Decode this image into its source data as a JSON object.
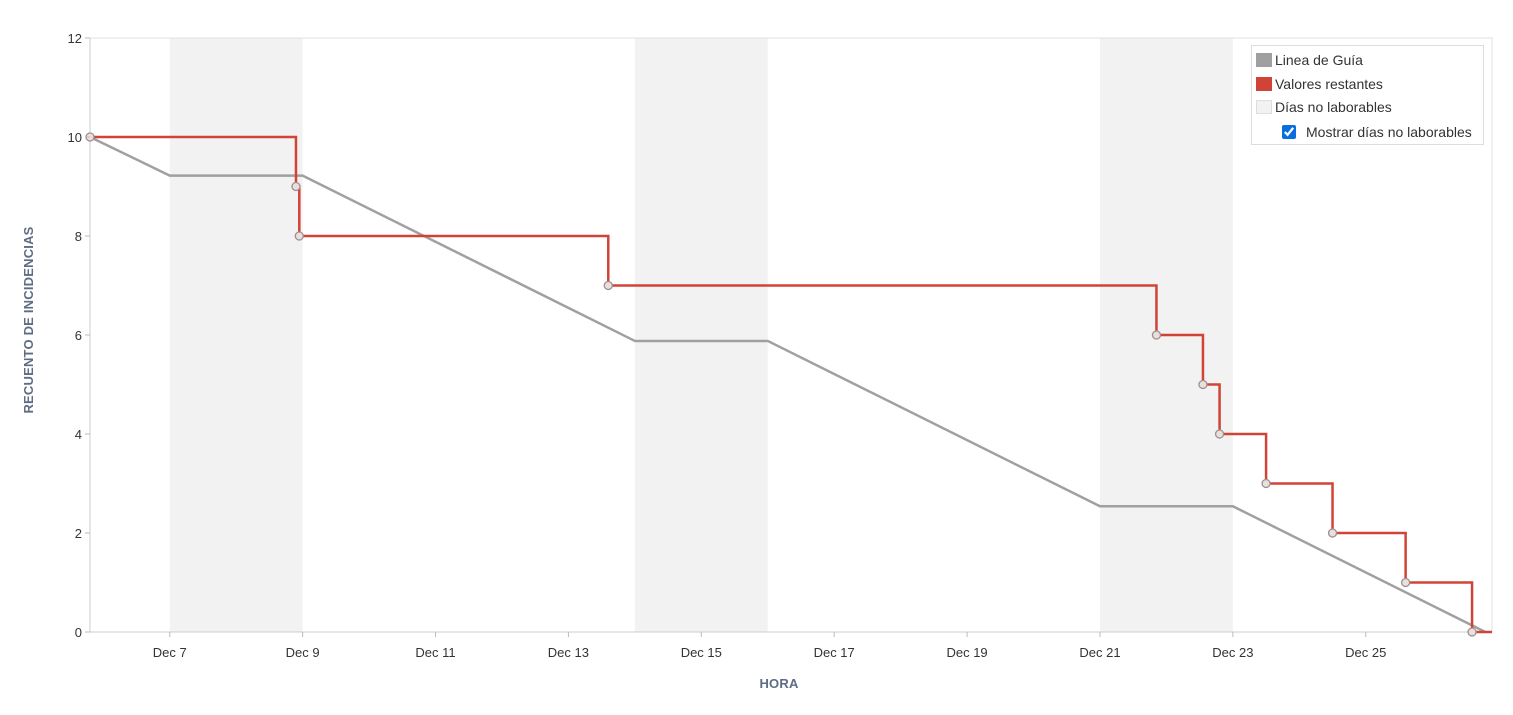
{
  "chart_data": {
    "type": "line",
    "xlabel": "HORA",
    "ylabel": "RECUENTO DE INCIDENCIAS",
    "xlim": [
      "Dec 5.8",
      "Dec 26.9"
    ],
    "ylim": [
      0,
      12
    ],
    "x_ticks": [
      "Dec 7",
      "Dec 9",
      "Dec 11",
      "Dec 13",
      "Dec 15",
      "Dec 17",
      "Dec 19",
      "Dec 21",
      "Dec 23",
      "Dec 25"
    ],
    "y_ticks": [
      "0",
      "2",
      "4",
      "6",
      "8",
      "10",
      "12"
    ],
    "non_working_periods": [
      {
        "start": "Dec 7",
        "end": "Dec 9"
      },
      {
        "start": "Dec 14",
        "end": "Dec 16"
      },
      {
        "start": "Dec 21",
        "end": "Dec 23"
      }
    ],
    "series": [
      {
        "name": "Linea de Guía",
        "color": "#a0a0a0",
        "points": [
          {
            "x": "Dec 5.8",
            "y": 10
          },
          {
            "x": "Dec 7",
            "y": 9.22
          },
          {
            "x": "Dec 9",
            "y": 9.22
          },
          {
            "x": "Dec 14",
            "y": 5.88
          },
          {
            "x": "Dec 16",
            "y": 5.88
          },
          {
            "x": "Dec 21",
            "y": 2.54
          },
          {
            "x": "Dec 23",
            "y": 2.54
          },
          {
            "x": "Dec 26.8",
            "y": 0
          }
        ]
      },
      {
        "name": "Valores restantes",
        "color": "#d04437",
        "step": true,
        "points": [
          {
            "x": "Dec 5.8",
            "y": 10
          },
          {
            "x": "Dec 8.9",
            "y": 9
          },
          {
            "x": "Dec 8.95",
            "y": 8
          },
          {
            "x": "Dec 13.6",
            "y": 7
          },
          {
            "x": "Dec 21.85",
            "y": 6
          },
          {
            "x": "Dec 22.55",
            "y": 5
          },
          {
            "x": "Dec 22.8",
            "y": 4
          },
          {
            "x": "Dec 23.5",
            "y": 3
          },
          {
            "x": "Dec 24.5",
            "y": 2
          },
          {
            "x": "Dec 25.6",
            "y": 1
          },
          {
            "x": "Dec 26.6",
            "y": 0
          }
        ]
      }
    ]
  },
  "legend": {
    "items": [
      {
        "label": "Linea de Guía",
        "color": "#a0a0a0"
      },
      {
        "label": "Valores restantes",
        "color": "#d04437"
      },
      {
        "label": "Días no laborables",
        "color": "#f2f2f2"
      }
    ],
    "checkbox_label": "Mostrar días no laborables",
    "checkbox_checked": true
  }
}
